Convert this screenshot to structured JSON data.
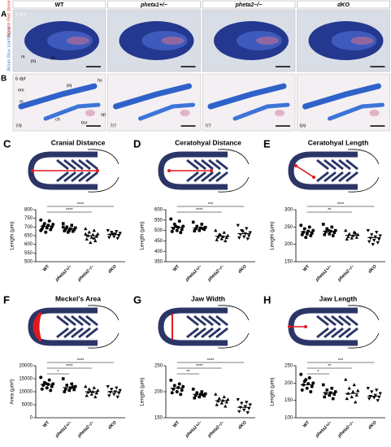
{
  "images": {
    "header": [
      "WT",
      "pheta1+/−",
      "pheta2−/−",
      "dKO"
    ],
    "stain_labels": [
      "Alcian Blue (cartilage)/",
      "Alizarin Red (bone)"
    ],
    "rows": [
      {
        "letter": "A",
        "stage": "6 dpf",
        "annotations": [
          "m",
          "pq",
          "ch"
        ]
      },
      {
        "letter": "B",
        "stage": "6 dpf",
        "annotations": [
          "em",
          "pq",
          "hs",
          "m",
          "ch",
          "bsr",
          "op"
        ]
      }
    ],
    "counts": [
      "7/9",
      "7/7",
      "7/7",
      "5/9"
    ]
  },
  "chart_data": [
    {
      "type": "dot",
      "letter": "C",
      "title": "Cranial Distance",
      "y_label": "Length (μm)",
      "categories": [
        "WT",
        "pheta1+/−",
        "pheta2−/−",
        "dKO"
      ],
      "markers": [
        "circle",
        "square",
        "triangle",
        "triangle-down"
      ],
      "color": "#000000",
      "values": [
        [
          740,
          735,
          720,
          715,
          710,
          705,
          700,
          695,
          690,
          685,
          670,
          680
        ],
        [
          720,
          710,
          700,
          695,
          690,
          688,
          685,
          680,
          678,
          675,
          670,
          700
        ],
        [
          690,
          680,
          670,
          660,
          655,
          650,
          645,
          640,
          630,
          620,
          610,
          660,
          635
        ],
        [
          680,
          675,
          670,
          665,
          660,
          655,
          650,
          645,
          640,
          635,
          660
        ]
      ],
      "means": [
        705,
        692,
        650,
        657
      ],
      "ylim": [
        500,
        800
      ],
      "yticks": [
        500,
        550,
        600,
        650,
        700,
        750,
        800
      ],
      "significance": [
        {
          "from": 0,
          "to": 3,
          "label": "****"
        },
        {
          "from": 0,
          "to": 2,
          "label": "****"
        }
      ]
    },
    {
      "type": "dot",
      "letter": "D",
      "title": "Ceratohyal Distance",
      "y_label": "Length (μm)",
      "categories": [
        "WT",
        "pheta1+/−",
        "pheta2−/−",
        "dKO"
      ],
      "markers": [
        "circle",
        "square",
        "triangle",
        "triangle-down"
      ],
      "color": "#000000",
      "values": [
        [
          555,
          545,
          530,
          520,
          515,
          510,
          505,
          500,
          495,
          490,
          520
        ],
        [
          540,
          530,
          520,
          515,
          512,
          508,
          505,
          500,
          498,
          510
        ],
        [
          500,
          490,
          480,
          475,
          470,
          468,
          465,
          460,
          455,
          450,
          478
        ],
        [
          525,
          510,
          500,
          490,
          485,
          480,
          475,
          470,
          465,
          460,
          495
        ]
      ],
      "means": [
        515,
        511,
        472,
        485
      ],
      "ylim": [
        350,
        600
      ],
      "yticks": [
        350,
        400,
        450,
        500,
        550,
        600
      ],
      "significance": [
        {
          "from": 0,
          "to": 3,
          "label": "***"
        },
        {
          "from": 0,
          "to": 2,
          "label": "****"
        }
      ]
    },
    {
      "type": "dot",
      "letter": "E",
      "title": "Ceratohyal Length",
      "y_label": "Length (μm)",
      "categories": [
        "WT",
        "pheta1+/−",
        "pheta2−/−",
        "dKO"
      ],
      "markers": [
        "circle",
        "square",
        "triangle",
        "triangle-down"
      ],
      "color": "#000000",
      "values": [
        [
          255,
          250,
          245,
          240,
          238,
          235,
          232,
          230,
          228,
          225,
          220
        ],
        [
          258,
          250,
          245,
          240,
          238,
          236,
          234,
          230,
          228,
          225,
          240
        ],
        [
          240,
          235,
          230,
          228,
          225,
          222,
          220,
          218,
          215,
          232
        ],
        [
          240,
          235,
          228,
          225,
          222,
          218,
          215,
          212,
          208,
          205,
          200
        ]
      ],
      "means": [
        236,
        238,
        226,
        219
      ],
      "ylim": [
        150,
        300
      ],
      "yticks": [
        150,
        200,
        250,
        300
      ],
      "significance": [
        {
          "from": 0,
          "to": 3,
          "label": "****"
        },
        {
          "from": 0,
          "to": 2,
          "label": "**"
        }
      ]
    },
    {
      "type": "dot",
      "letter": "F",
      "title": "Meckel's Area",
      "y_label": "Area (μm²)",
      "categories": [
        "WT",
        "pheta1+/−",
        "pheta2−/−",
        "dKO"
      ],
      "markers": [
        "circle",
        "square",
        "triangle",
        "triangle-down"
      ],
      "color": "#000000",
      "values": [
        [
          15500,
          14500,
          13500,
          13000,
          12800,
          12500,
          12000,
          11500,
          11000,
          10500,
          13200
        ],
        [
          15000,
          13000,
          12500,
          12000,
          11500,
          11000,
          10800,
          10500,
          10000,
          11800
        ],
        [
          12000,
          11500,
          11000,
          10500,
          10000,
          9800,
          9500,
          9000,
          8500,
          8000,
          10200
        ],
        [
          12000,
          11500,
          11000,
          10500,
          10000,
          9800,
          9500,
          9000,
          8500,
          8000
        ]
      ],
      "means": [
        12800,
        11600,
        10000,
        9980
      ],
      "ylim": [
        0,
        20000
      ],
      "yticks": [
        0,
        5000,
        10000,
        15000,
        20000
      ],
      "significance": [
        {
          "from": 0,
          "to": 3,
          "label": "****"
        },
        {
          "from": 0,
          "to": 2,
          "label": "****"
        },
        {
          "from": 0,
          "to": 1,
          "label": "*"
        }
      ]
    },
    {
      "type": "dot",
      "letter": "G",
      "title": "Jaw Width",
      "y_label": "Length (μm)",
      "categories": [
        "WT",
        "pheta1+/−",
        "pheta2−/−",
        "dKO"
      ],
      "markers": [
        "circle",
        "square",
        "triangle",
        "triangle-down"
      ],
      "color": "#000000",
      "values": [
        [
          222,
          215,
          212,
          210,
          208,
          205,
          203,
          200,
          198,
          195
        ],
        [
          205,
          200,
          198,
          196,
          195,
          193,
          192,
          190,
          188,
          194
        ],
        [
          195,
          190,
          187,
          185,
          183,
          182,
          180,
          178,
          175,
          172
        ],
        [
          185,
          180,
          178,
          175,
          172,
          170,
          168,
          165,
          162,
          160
        ]
      ],
      "means": [
        207,
        195,
        183,
        170
      ],
      "ylim": [
        150,
        250
      ],
      "yticks": [
        150,
        200,
        250
      ],
      "significance": [
        {
          "from": 0,
          "to": 3,
          "label": "****"
        },
        {
          "from": 0,
          "to": 2,
          "label": "****"
        },
        {
          "from": 0,
          "to": 1,
          "label": "**"
        }
      ]
    },
    {
      "type": "dot",
      "letter": "H",
      "title": "Jaw Length",
      "y_label": "Length (μm)",
      "categories": [
        "WT",
        "pheta1+/−",
        "pheta2−/−",
        "dKO"
      ],
      "markers": [
        "circle",
        "square",
        "triangle",
        "triangle-down"
      ],
      "color": "#000000",
      "values": [
        [
          225,
          215,
          205,
          200,
          198,
          195,
          190,
          185,
          180,
          175,
          210
        ],
        [
          195,
          185,
          180,
          175,
          172,
          170,
          168,
          165,
          160,
          155
        ],
        [
          210,
          195,
          185,
          178,
          175,
          170,
          165,
          160,
          155,
          145
        ],
        [
          185,
          180,
          175,
          170,
          165,
          162,
          160,
          158,
          155,
          150
        ]
      ],
      "means": [
        195,
        172,
        170,
        162
      ],
      "ylim": [
        100,
        250
      ],
      "yticks": [
        100,
        150,
        200,
        250
      ],
      "significance": [
        {
          "from": 0,
          "to": 3,
          "label": "***"
        },
        {
          "from": 0,
          "to": 2,
          "label": "**"
        },
        {
          "from": 0,
          "to": 1,
          "label": "*"
        }
      ]
    }
  ]
}
